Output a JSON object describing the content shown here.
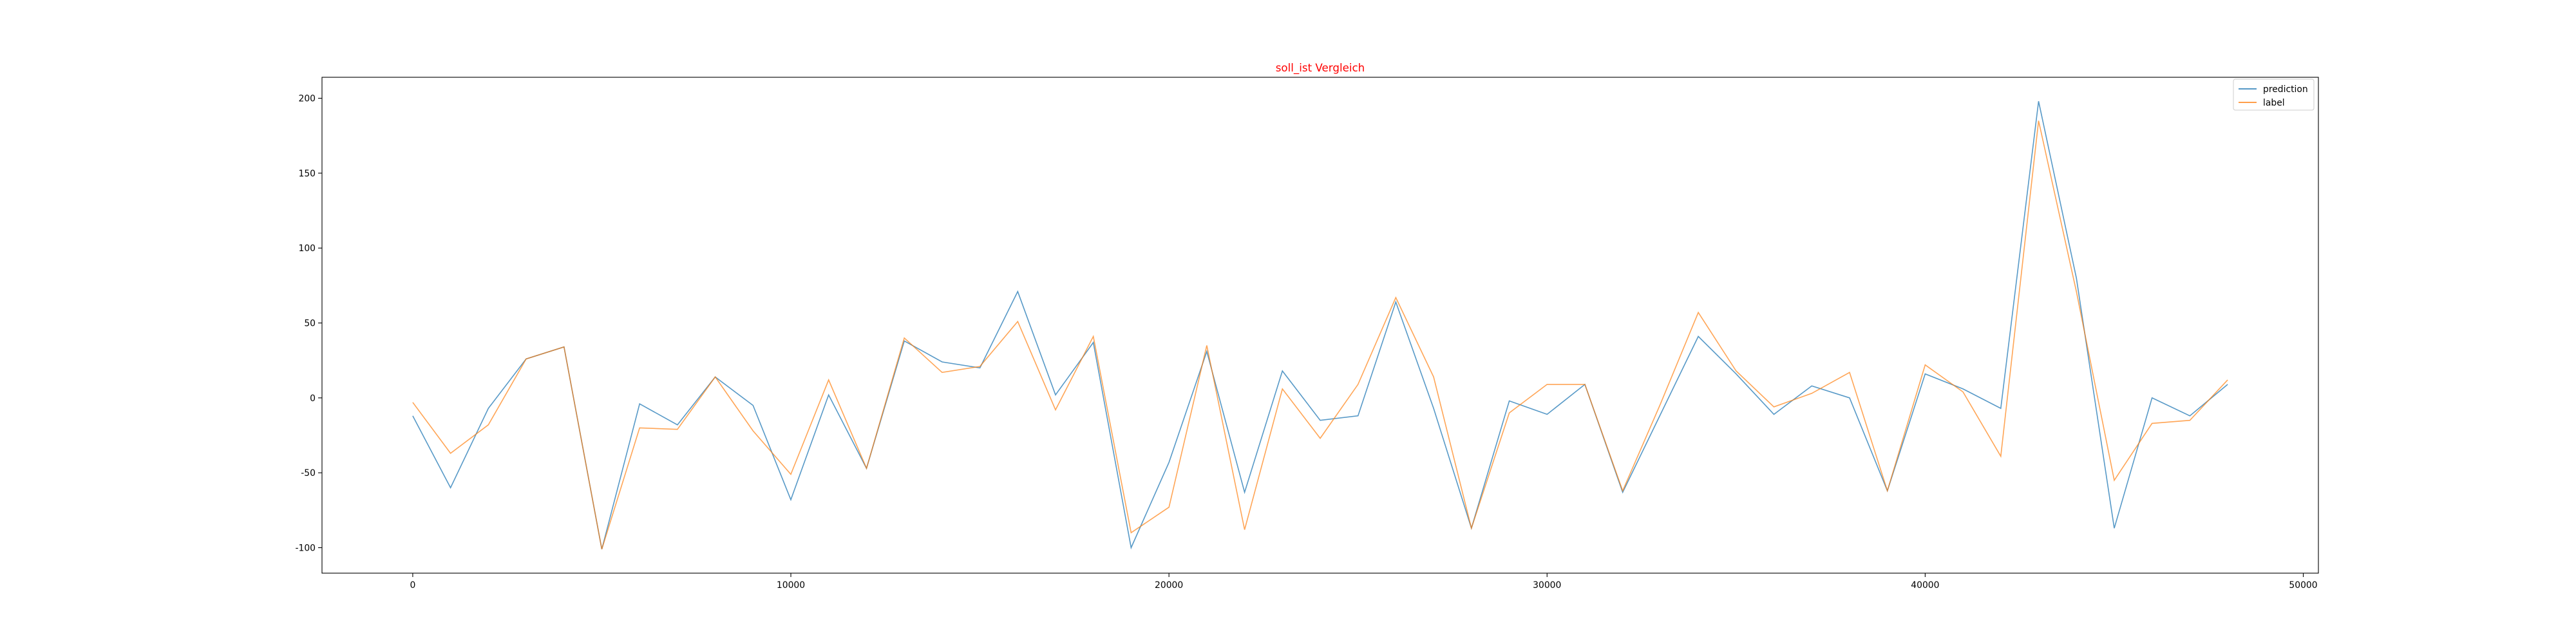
{
  "chart_data": {
    "type": "line",
    "title": "soll_ist Vergleich",
    "title_color": "#ff0000",
    "xlabel": "",
    "ylabel": "",
    "xlim": [
      -2400,
      50400
    ],
    "ylim": [
      -117,
      214
    ],
    "xticks": [
      0,
      10000,
      20000,
      30000,
      40000,
      50000
    ],
    "yticks": [
      -100,
      -50,
      0,
      50,
      100,
      150,
      200
    ],
    "grid": false,
    "legend_position": "upper right",
    "x": [
      0,
      1000,
      2000,
      3000,
      4000,
      5000,
      6000,
      7000,
      8000,
      9000,
      10000,
      11000,
      12000,
      13000,
      14000,
      15000,
      16000,
      17000,
      18000,
      19000,
      20000,
      21000,
      22000,
      23000,
      24000,
      25000,
      26000,
      27000,
      28000,
      29000,
      30000,
      31000,
      32000,
      33000,
      34000,
      35000,
      36000,
      37000,
      38000,
      39000,
      40000,
      41000,
      42000,
      43000,
      44000,
      45000,
      46000,
      47000,
      48000
    ],
    "series": [
      {
        "name": "prediction",
        "color": "#1f77b4",
        "values": [
          -12,
          -60,
          -7,
          26,
          34,
          -101,
          -4,
          -18,
          14,
          -5,
          -68,
          2,
          -47,
          38,
          24,
          20,
          71,
          2,
          37,
          -100,
          -43,
          31,
          -63,
          18,
          -15,
          -12,
          64,
          -7,
          -87,
          -2,
          -11,
          9,
          -63,
          -11,
          41,
          16,
          -11,
          8,
          0,
          -62,
          16,
          6,
          -7,
          198,
          80,
          -87,
          0,
          -12,
          9
        ],
        "end_index": 48
      },
      {
        "name": "label",
        "color": "#ff7f0e",
        "values": [
          -3,
          -37,
          -18,
          26,
          34,
          -101,
          -20,
          -21,
          14,
          -22,
          -51,
          12,
          -47,
          40,
          17,
          21,
          51,
          -8,
          41,
          -90,
          -73,
          35,
          -88,
          6,
          -27,
          9,
          67,
          14,
          -87,
          -10,
          9,
          9,
          -62,
          -4,
          57,
          18,
          -6,
          3,
          17,
          -62,
          22,
          4,
          -39,
          185,
          71,
          -55,
          -17,
          -15,
          12
        ],
        "end_index": 48
      }
    ]
  }
}
